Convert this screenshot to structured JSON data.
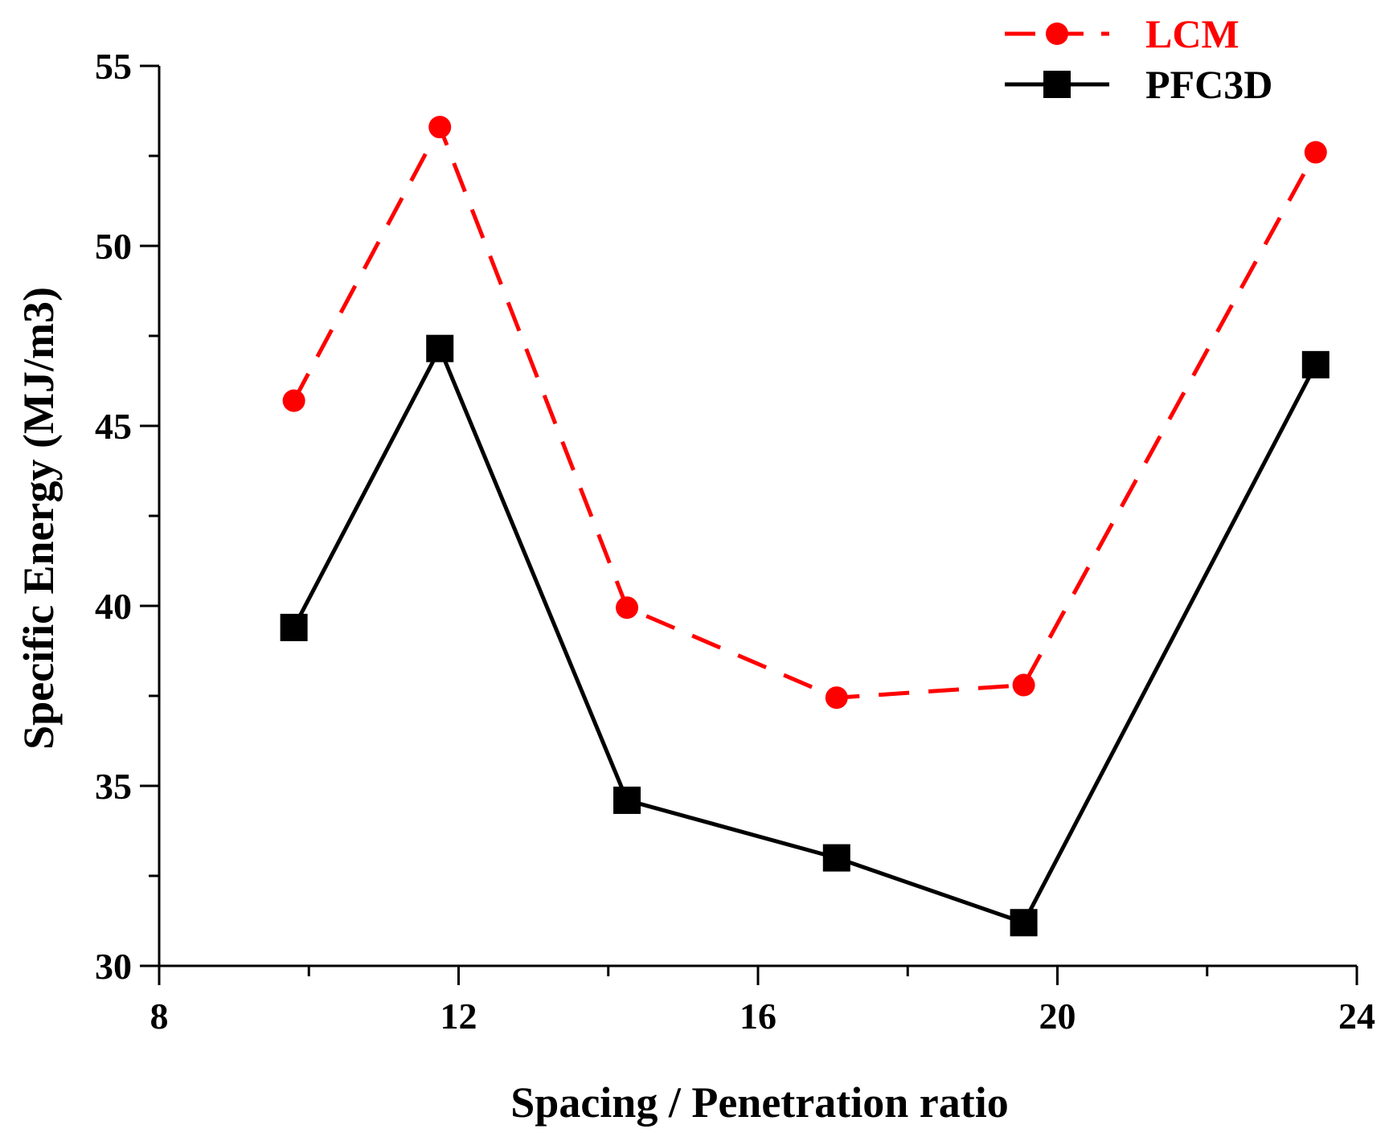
{
  "chart_data": {
    "type": "line",
    "title": "",
    "xlabel": "Spacing / Penetration ratio",
    "ylabel": "Specific Energy (MJ/m3)",
    "xlim": [
      8,
      24
    ],
    "ylim": [
      30,
      55
    ],
    "xticks": [
      8,
      12,
      16,
      20,
      24
    ],
    "yticks": [
      30,
      35,
      40,
      45,
      50,
      55
    ],
    "x_tick_labels": [
      "8",
      "12",
      "16",
      "20",
      "24"
    ],
    "y_tick_labels": [
      "30",
      "35",
      "40",
      "45",
      "50",
      "55"
    ],
    "grid": false,
    "legend_position": "top-right",
    "series": [
      {
        "name": "LCM",
        "color": "#ff0000",
        "line_style": "dashed",
        "marker": "circle",
        "x": [
          9.8,
          11.75,
          14.25,
          17.05,
          19.55,
          23.45
        ],
        "values": [
          45.7,
          53.3,
          39.95,
          37.45,
          37.8,
          52.6
        ]
      },
      {
        "name": "PFC3D",
        "color": "#000000",
        "line_style": "solid",
        "marker": "square",
        "x": [
          9.8,
          11.75,
          14.25,
          17.05,
          19.55,
          23.45
        ],
        "values": [
          39.4,
          47.15,
          34.6,
          33.0,
          31.2,
          46.7
        ]
      }
    ]
  }
}
